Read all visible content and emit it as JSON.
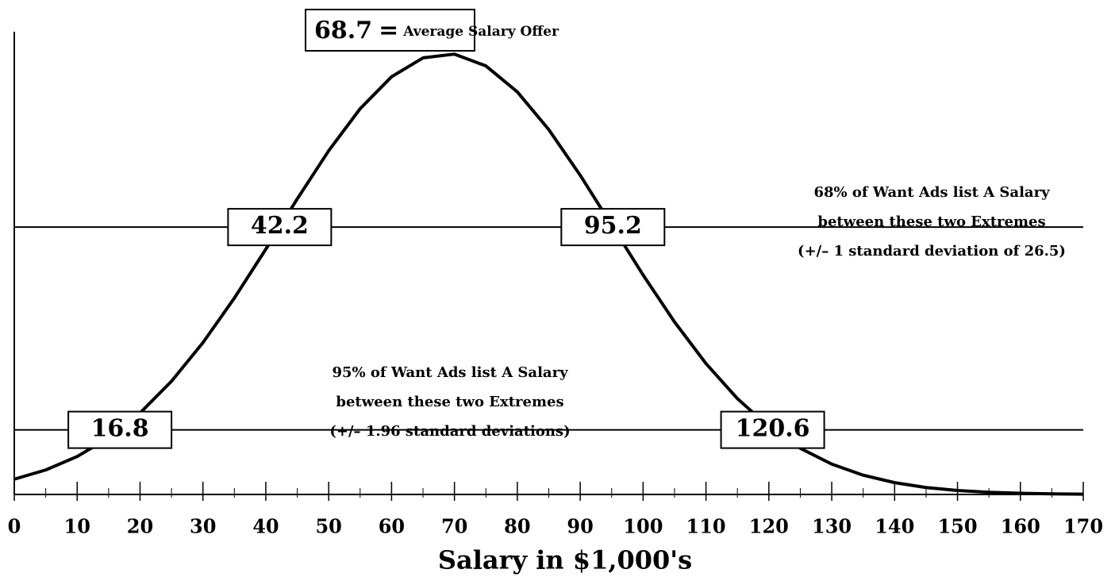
{
  "chart_data": {
    "type": "line",
    "x": [
      0,
      5,
      10,
      15,
      20,
      25,
      30,
      35,
      40,
      45,
      50,
      55,
      60,
      65,
      70,
      75,
      80,
      85,
      90,
      95,
      100,
      105,
      110,
      115,
      120,
      125,
      130,
      135,
      140,
      145,
      150,
      155,
      160,
      165,
      170
    ],
    "values": [
      0.000522,
      0.000837,
      0.001295,
      0.001932,
      0.002782,
      0.003865,
      0.005183,
      0.006706,
      0.008374,
      0.010092,
      0.011736,
      0.013171,
      0.014264,
      0.014908,
      0.015036,
      0.014634,
      0.013746,
      0.012459,
      0.010899,
      0.0092,
      0.007494,
      0.005891,
      0.00447,
      0.003273,
      0.002312,
      0.001576,
      0.001037,
      0.000658,
      0.000403,
      0.000238,
      0.000136,
      7.5e-05,
      4e-05,
      2e-05,
      1e-05
    ],
    "color": "#000000",
    "xlim": [
      0,
      170
    ],
    "xticks": [
      0,
      10,
      20,
      30,
      40,
      50,
      60,
      70,
      80,
      90,
      100,
      110,
      120,
      130,
      140,
      150,
      160,
      170
    ],
    "xminorticks": [
      5,
      15,
      25,
      35,
      45,
      55,
      65,
      75,
      85,
      95,
      105,
      115,
      125,
      135,
      145,
      155,
      165
    ],
    "ylim": [
      0,
      0.0158
    ],
    "xlabel": "Salary in $1,000's",
    "mean": {
      "value": 68.7,
      "sign": "=",
      "text": "Average Salary Offer"
    },
    "ranges": [
      {
        "level": 0.00913,
        "low": 42.2,
        "high": 95.2,
        "note": [
          "68% of Want Ads list A Salary",
          "between these two Extremes",
          "(+/– 1 standard deviation of  26.5)"
        ]
      },
      {
        "level": 0.002206,
        "low": 16.8,
        "high": 120.6,
        "note": [
          "95% of Want Ads list A Salary",
          "between these two Extremes",
          "(+/– 1.96 standard deviations)"
        ]
      }
    ]
  }
}
